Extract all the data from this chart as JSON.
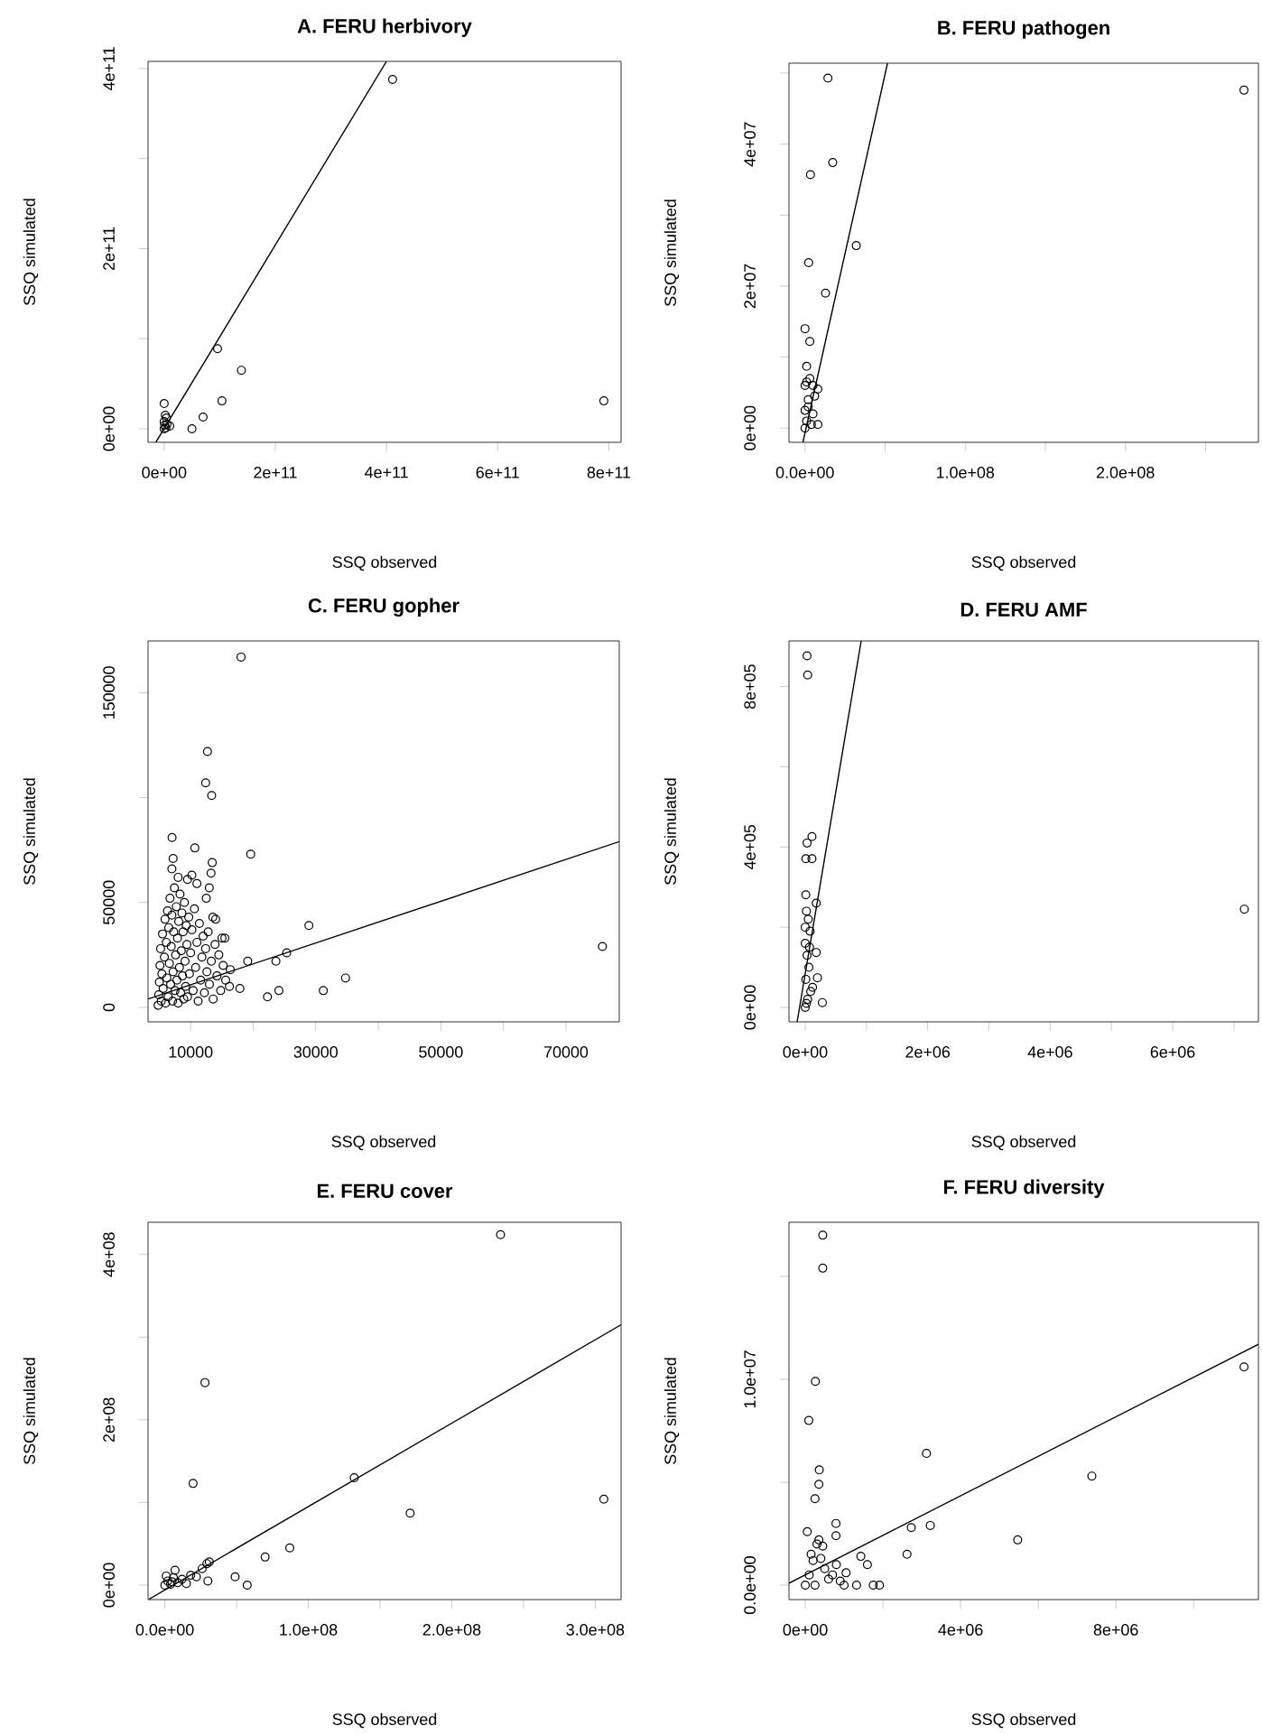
{
  "chart_data": [
    {
      "type": "scatter",
      "title": "A. FERU herbivory",
      "xlabel": "SSQ observed",
      "ylabel": "SSQ simulated",
      "xlim": [
        -29000000000.0,
        822000000000.0
      ],
      "ylim": [
        -15000000000.0,
        408000000000.0
      ],
      "xticks": [
        {
          "value": 0,
          "label": "0e+00"
        },
        {
          "value": 200000000000.0,
          "label": "2e+11"
        },
        {
          "value": 400000000000.0,
          "label": "4e+11"
        },
        {
          "value": 600000000000.0,
          "label": "6e+11"
        },
        {
          "value": 800000000000.0,
          "label": "8e+11"
        }
      ],
      "yticks": [
        {
          "value": 0,
          "label": "0e+00"
        },
        {
          "value": 100000000000.0,
          "label": null
        },
        {
          "value": 200000000000.0,
          "label": "2e+11"
        },
        {
          "value": 300000000000.0,
          "label": null
        },
        {
          "value": 400000000000.0,
          "label": "4e+11"
        }
      ],
      "series": [
        {
          "marker": "circle",
          "color": "#000000",
          "x": [
            0,
            1000000000.0,
            3000000000.0,
            0,
            2000000000.0,
            5000000000.0,
            10000000000.0,
            0,
            4000000000.0,
            50000000000.0,
            70000000000.0,
            96000000000.0,
            104000000000.0,
            139000000000.0,
            411000000000.0,
            791000000000.0
          ],
          "values": [
            0,
            4000000000.0,
            1000000000.0,
            28000000000.0,
            15000000000.0,
            5000000000.0,
            3000000000.0,
            8000000000.0,
            12000000000.0,
            0,
            13000000000.0,
            89000000000.0,
            31000000000.0,
            65000000000.0,
            388000000000.0,
            31000000000.0
          ]
        },
        {
          "type": "line",
          "color": "#000000",
          "x": [
            -15000000000.0,
            400000000000.0
          ],
          "values": [
            -15000000000.0,
            408000000000.0
          ]
        }
      ]
    },
    {
      "type": "scatter",
      "title": "B. FERU pathogen",
      "xlabel": "SSQ observed",
      "ylabel": "SSQ simulated",
      "xlim": [
        -10000000.0,
        283000000.0
      ],
      "ylim": [
        -2000000.0,
        51400000.0
      ],
      "xticks": [
        {
          "value": 0,
          "label": "0.0e+00"
        },
        {
          "value": 50000000.0,
          "label": null
        },
        {
          "value": 100000000.0,
          "label": "1.0e+08"
        },
        {
          "value": 150000000.0,
          "label": null
        },
        {
          "value": 200000000.0,
          "label": "2.0e+08"
        },
        {
          "value": 250000000.0,
          "label": null
        }
      ],
      "yticks": [
        {
          "value": 0,
          "label": "0e+00"
        },
        {
          "value": 10000000.0,
          "label": null
        },
        {
          "value": 20000000.0,
          "label": "2e+07"
        },
        {
          "value": 30000000.0,
          "label": null
        },
        {
          "value": 40000000.0,
          "label": "4e+07"
        },
        {
          "value": 50000000.0,
          "label": null
        }
      ],
      "series": [
        {
          "marker": "circle",
          "color": "#000000",
          "x": [
            14300000.0,
            274000000.0,
            3400000.0,
            17300000.0,
            32000000.0,
            2300000.0,
            12800000.0,
            0,
            3000000.0,
            1000000.0,
            0,
            5000000.0,
            8000000.0,
            2000000.0,
            5000000.0,
            0,
            8000000.0,
            2000000.0,
            1000000.0,
            3000000.0,
            6000000.0,
            0,
            4000000.0,
            1000000.0
          ],
          "values": [
            49300000.0,
            47600000.0,
            35700000.0,
            37400000.0,
            25700000.0,
            23300000.0,
            19000000.0,
            14000000.0,
            12200000.0,
            8700000.0,
            6000000.0,
            6000000.0,
            5500000.0,
            3000000.0,
            2000000.0,
            0,
            500000.0,
            4000000.0,
            1000000.0,
            7000000.0,
            4500000.0,
            2500000.0,
            500000.0,
            6500000.0
          ]
        },
        {
          "type": "line",
          "color": "#000000",
          "x": [
            -1300000.0,
            51500000.0
          ],
          "values": [
            -2000000.0,
            51400000.0
          ]
        }
      ]
    },
    {
      "type": "scatter",
      "title": "C. FERU gopher",
      "xlabel": "SSQ observed",
      "ylabel": "SSQ simulated",
      "xlim": [
        3190,
        78520
      ],
      "ylim": [
        -6900,
        174700
      ],
      "xticks": [
        10000,
        {
          "value": 20000,
          "label": null
        },
        30000,
        {
          "value": 40000,
          "label": null
        },
        50000,
        {
          "value": 60000,
          "label": null
        },
        70000
      ],
      "yticks": [
        0,
        50000,
        {
          "value": 100000,
          "label": null
        },
        150000
      ],
      "series": [
        {
          "marker": "circle",
          "color": "#000000",
          "x": [
            18060,
            12690,
            12400,
            13360,
            7030,
            10670,
            19600,
            7200,
            13450,
            13260,
            10190,
            28900,
            25350,
            23630,
            19120,
            22280,
            24110,
            31210,
            34760,
            75830,
            17870,
            16330,
            15470,
            13550,
            12980,
            4800,
            4900,
            5000,
            5100,
            5200,
            5300,
            5400,
            5500,
            5600,
            5800,
            5900,
            6000,
            6100,
            6200,
            6300,
            6400,
            6500,
            6600,
            6700,
            6800,
            6900,
            7000,
            7100,
            7200,
            7300,
            7400,
            7500,
            7600,
            7700,
            7800,
            7900,
            8000,
            8100,
            8200,
            8300,
            8400,
            8500,
            8600,
            8700,
            8800,
            8900,
            9000,
            9100,
            9200,
            9300,
            9400,
            9500,
            9700,
            9800,
            10000,
            10200,
            10400,
            10600,
            10800,
            11000,
            11200,
            11400,
            11600,
            11800,
            12000,
            12200,
            12400,
            12600,
            12800,
            13000,
            13300,
            13600,
            13900,
            14200,
            14500,
            14800,
            15200,
            15600,
            16200,
            15000,
            14000,
            12500,
            11000,
            9500,
            8000,
            7000
          ],
          "values": [
            167000,
            122000,
            107000,
            101000,
            81000,
            76000,
            73000,
            71000,
            69000,
            64000,
            63000,
            39000,
            26000,
            22000,
            22000,
            5000,
            8000,
            8000,
            14000,
            29000,
            9000,
            18000,
            33000,
            43000,
            57000,
            1000,
            6000,
            12000,
            20000,
            28000,
            3000,
            16000,
            35000,
            9000,
            24000,
            42000,
            2000,
            31000,
            14000,
            46000,
            5000,
            38000,
            21000,
            52000,
            11000,
            29000,
            44000,
            3000,
            17000,
            36000,
            57000,
            8000,
            25000,
            48000,
            13000,
            33000,
            2000,
            41000,
            19000,
            54000,
            7000,
            27000,
            45000,
            15000,
            36000,
            4000,
            50000,
            22000,
            10000,
            39000,
            30000,
            5000,
            43000,
            16000,
            26000,
            37000,
            8000,
            47000,
            19000,
            31000,
            3000,
            40000,
            13000,
            24000,
            34000,
            7000,
            28000,
            17000,
            36000,
            11000,
            22000,
            4000,
            30000,
            15000,
            25000,
            8000,
            20000,
            13000,
            10000,
            33000,
            42000,
            52000,
            59000,
            61000,
            62000,
            66000
          ]
        },
        {
          "type": "line",
          "color": "#000000",
          "x": [
            3190,
            78520
          ],
          "values": [
            4000,
            79000
          ]
        }
      ]
    },
    {
      "type": "scatter",
      "title": "D. FERU AMF",
      "xlabel": "SSQ observed",
      "ylabel": "SSQ simulated",
      "xlim": [
        -265000.0,
        7400000.0
      ],
      "ylim": [
        -36000.0,
        914000.0
      ],
      "xticks": [
        {
          "value": 0,
          "label": "0e+00"
        },
        {
          "value": 1000000.0,
          "label": null
        },
        {
          "value": 2000000.0,
          "label": "2e+06"
        },
        {
          "value": 3000000.0,
          "label": null
        },
        {
          "value": 4000000.0,
          "label": "4e+06"
        },
        {
          "value": 5000000.0,
          "label": null
        },
        {
          "value": 6000000.0,
          "label": "6e+06"
        },
        {
          "value": 7000000.0,
          "label": null
        }
      ],
      "yticks": [
        {
          "value": 0,
          "label": "0e+00"
        },
        {
          "value": 200000.0,
          "label": null
        },
        {
          "value": 400000.0,
          "label": "4e+05"
        },
        {
          "value": 600000.0,
          "label": null
        },
        {
          "value": 800000.0,
          "label": "8e+05"
        }
      ],
      "series": [
        {
          "marker": "circle",
          "color": "#000000",
          "x": [
            30000,
            40000,
            7170000.0,
            30000,
            110000.0,
            10000,
            110000.0,
            10000,
            180000.0,
            180000.0,
            200000.0,
            280000.0,
            0,
            20000,
            50000,
            80000,
            0,
            30000,
            60000,
            10000,
            90000,
            40000,
            0,
            70000,
            120000.0,
            20000
          ],
          "values": [
            877000.0,
            829000.0,
            245000.0,
            410000.0,
            426000.0,
            371000.0,
            371000.0,
            281000.0,
            260000.0,
            137000.0,
            74000.0,
            12000.0,
            0,
            240000.0,
            220000.0,
            190000.0,
            160000.0,
            130000.0,
            100000.0,
            70000.0,
            40000.0,
            20000.0,
            200000.0,
            150000.0,
            50000.0,
            10000.0
          ]
        },
        {
          "type": "line",
          "color": "#000000",
          "x": [
            -132000.0,
            914000.0
          ],
          "values": [
            -36000.0,
            914000.0
          ]
        }
      ]
    },
    {
      "type": "scatter",
      "title": "E. FERU cover",
      "xlabel": "SSQ observed",
      "ylabel": "SSQ simulated",
      "xlim": [
        -11700000.0,
        318000000.0
      ],
      "ylim": [
        -17500000.0,
        439000000.0
      ],
      "xticks": [
        {
          "value": 0,
          "label": "0.0e+00"
        },
        {
          "value": 50000000.0,
          "label": null
        },
        {
          "value": 100000000.0,
          "label": "1.0e+08"
        },
        {
          "value": 150000000.0,
          "label": null
        },
        {
          "value": 200000000.0,
          "label": "2.0e+08"
        },
        {
          "value": 250000000.0,
          "label": null
        },
        {
          "value": 300000000.0,
          "label": "3.0e+08"
        }
      ],
      "yticks": [
        {
          "value": 0,
          "label": "0e+00"
        },
        {
          "value": 100000000.0,
          "label": null
        },
        {
          "value": 200000000.0,
          "label": "2e+08"
        },
        {
          "value": 300000000.0,
          "label": null
        },
        {
          "value": 400000000.0,
          "label": "4e+08"
        }
      ],
      "series": [
        {
          "marker": "circle",
          "color": "#000000",
          "x": [
            234000000.0,
            306000000.0,
            28000000.0,
            19700000.0,
            132000000.0,
            171000000.0,
            87100000.0,
            69900000.0,
            49000000.0,
            57400000.0,
            29300000.0,
            30000000.0,
            22000000.0,
            7100000.0,
            0,
            2000000.0,
            4000000.0,
            6000000.0,
            9000000.0,
            12000000.0,
            15000000.0,
            18000000.0,
            26000000.0,
            31000000.0,
            1000000.0,
            5000000.0
          ],
          "values": [
            424000000.0,
            104000000.0,
            245000000.0,
            123000000.0,
            130000000.0,
            87000000.0,
            45000000.0,
            34000000.0,
            10000000.0,
            0,
            26000000.0,
            5000000.0,
            10000000.0,
            18000000.0,
            0,
            5000000.0,
            1000000.0,
            9000000.0,
            3000000.0,
            7000000.0,
            2000000.0,
            12000000.0,
            20000000.0,
            28000000.0,
            11000000.0,
            4000000.0
          ]
        },
        {
          "type": "line",
          "color": "#000000",
          "x": [
            -11000000.0,
            318000000.0
          ],
          "values": [
            -17000000.0,
            315000000.0
          ]
        }
      ]
    },
    {
      "type": "scatter",
      "title": "F. FERU diversity",
      "xlabel": "SSQ observed",
      "ylabel": "SSQ simulated",
      "xlim": [
        -420000.0,
        11670000.0
      ],
      "ylim": [
        -700000.0,
        17630000.0
      ],
      "xticks": [
        {
          "value": 0,
          "label": "0e+00"
        },
        {
          "value": 2000000.0,
          "label": null
        },
        {
          "value": 4000000.0,
          "label": "4e+06"
        },
        {
          "value": 6000000.0,
          "label": null
        },
        {
          "value": 8000000.0,
          "label": "8e+06"
        },
        {
          "value": 10000000.0,
          "label": null
        }
      ],
      "yticks": [
        {
          "value": 0,
          "label": "0.0e+00"
        },
        {
          "value": 5000000.0,
          "label": null
        },
        {
          "value": 10000000.0,
          "label": "1.0e+07"
        },
        {
          "value": 15000000.0,
          "label": null
        }
      ],
      "series": [
        {
          "marker": "circle",
          "color": "#000000",
          "x": [
            450000.0,
            450000.0,
            260000.0,
            90000.0,
            360000.0,
            350000.0,
            250000.0,
            3120000.0,
            7380000.0,
            11300000.0,
            5470000.0,
            2730000.0,
            3220000.0,
            2620000.0,
            790000.0,
            790000.0,
            1430000.0,
            1600000.0,
            1320000.0,
            1750000.0,
            1910000.0,
            1000000.0,
            1050000.0,
            50000.0,
            450000.0,
            0,
            100000.0,
            200000.0,
            300000.0,
            500000.0,
            600000.0,
            800000.0,
            150000.0,
            350000.0,
            700000.0,
            900000.0,
            250000.0,
            400000.0
          ],
          "values": [
            17000000.0,
            15400000.0,
            9900000.0,
            8000000.0,
            5600000.0,
            4900000.0,
            4200000.0,
            6400000.0,
            5300000.0,
            10600000.0,
            2200000.0,
            2800000.0,
            2900000.0,
            1500000.0,
            3000000.0,
            2400000.0,
            1400000.0,
            1000000.0,
            0,
            0,
            0,
            0,
            600000.0,
            2600000.0,
            1900000.0,
            0,
            500000.0,
            1200000.0,
            2000000.0,
            800000.0,
            300000.0,
            1000000.0,
            1500000.0,
            2200000.0,
            500000.0,
            200000.0,
            0,
            1300000.0
          ]
        },
        {
          "type": "line",
          "color": "#000000",
          "x": [
            -420000.0,
            11670000.0
          ],
          "values": [
            100000.0,
            11700000.0
          ]
        }
      ]
    }
  ]
}
